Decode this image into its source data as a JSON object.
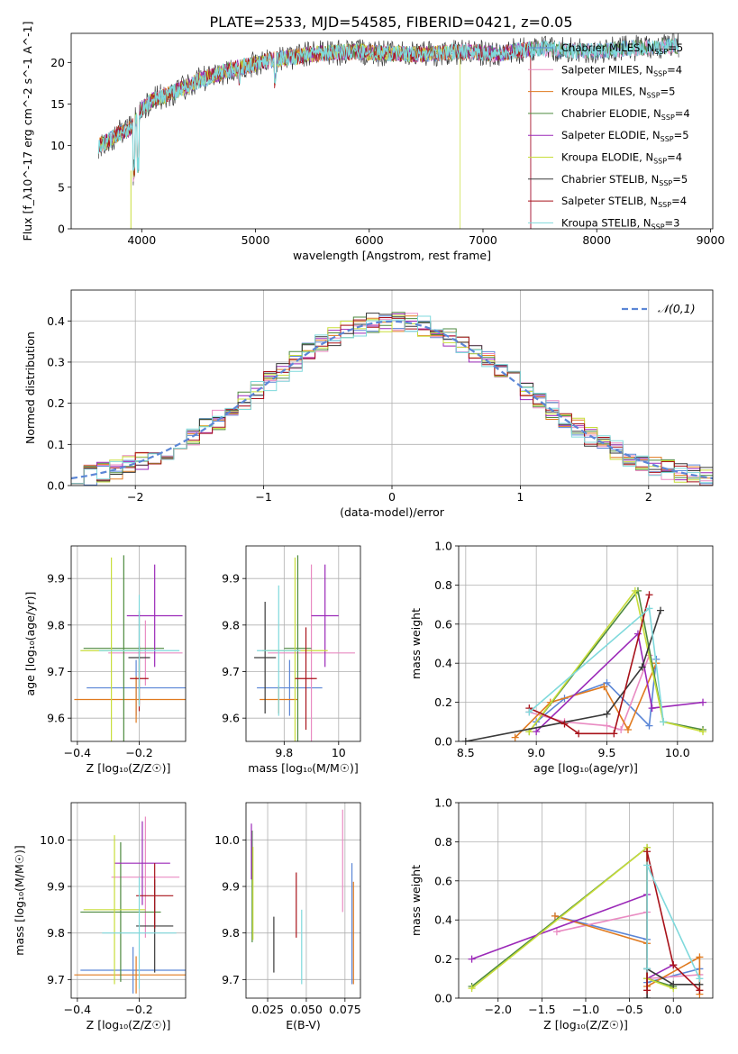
{
  "title": "PLATE=2533, MJD=54585, FIBERID=0421, z=0.05",
  "colors": {
    "chabrier_miles": "#5b86d6",
    "salpeter_miles": "#e98bc2",
    "kroupa_miles": "#e07a1f",
    "chabrier_elodie": "#4e8a3f",
    "salpeter_elodie": "#9b29b8",
    "kroupa_elodie": "#c8dd3a",
    "chabrier_stelib": "#3a3a3a",
    "salpeter_stelib": "#a8121a",
    "kroupa_stelib": "#7fd9dc"
  },
  "chart_data": [
    {
      "id": "spectrum",
      "type": "line",
      "title": "PLATE=2533, MJD=54585, FIBERID=0421, z=0.05",
      "xlabel": "wavelength [Angstrom, rest frame]",
      "ylabel": "Flux [f_λ10^-17 erg cm^-2 s^-1 A^-1]",
      "xlim": [
        3380,
        9020
      ],
      "ylim": [
        0,
        23.5
      ],
      "xticks": [
        4000,
        5000,
        6000,
        7000,
        8000,
        9000
      ],
      "yticks": [
        0,
        5,
        10,
        15,
        20
      ],
      "grid": false,
      "legend_position": "top-right",
      "series": [
        {
          "name": "Chabrier MILES, N_SSP=5",
          "color": "#5b86d6"
        },
        {
          "name": "Salpeter MILES, N_SSP=4",
          "color": "#e98bc2"
        },
        {
          "name": "Kroupa MILES, N_SSP=5",
          "color": "#e07a1f"
        },
        {
          "name": "Chabrier ELODIE, N_SSP=4",
          "color": "#4e8a3f"
        },
        {
          "name": "Salpeter ELODIE, N_SSP=5",
          "color": "#9b29b8"
        },
        {
          "name": "Kroupa ELODIE, N_SSP=4",
          "color": "#c8dd3a"
        },
        {
          "name": "Chabrier STELIB, N_SSP=5",
          "color": "#3a3a3a"
        },
        {
          "name": "Salpeter STELIB, N_SSP=4",
          "color": "#a8121a"
        },
        {
          "name": "Kroupa STELIB, N_SSP=3",
          "color": "#7fd9dc"
        }
      ],
      "continuum": {
        "x": [
          3620,
          3700,
          3800,
          3900,
          4000,
          4100,
          4200,
          4300,
          4500,
          4700,
          4900,
          5100,
          5300,
          5500,
          5700,
          5900,
          6100,
          6300,
          6500,
          6700,
          6900,
          7100,
          7300,
          7500,
          7700,
          7900,
          8100,
          8300,
          8500,
          8700
        ],
        "y": [
          10,
          10.5,
          11.5,
          12,
          14.5,
          15.5,
          16,
          16.5,
          17.8,
          18.8,
          19.5,
          20.2,
          20.6,
          21,
          21.2,
          21.3,
          21.1,
          21,
          21,
          21.2,
          21.3,
          21,
          21.4,
          21.7,
          21.5,
          21.3,
          21.5,
          21.7,
          21.8,
          22
        ]
      }
    },
    {
      "id": "residuals",
      "type": "line",
      "xlabel": "(data-model)/error",
      "ylabel": "Normed distribution",
      "xlim": [
        -2.5,
        2.5
      ],
      "ylim": [
        0,
        0.475
      ],
      "xticks": [
        -2,
        -1,
        0,
        1,
        2
      ],
      "yticks": [
        0.0,
        0.1,
        0.2,
        0.3,
        0.4
      ],
      "grid": true,
      "legend_position": "top-right",
      "legend": [
        "𝒩(0,1)"
      ]
    },
    {
      "id": "age_vs_Z",
      "type": "scatter",
      "xlabel": "Z [log₁₀(Z/Z☉)]",
      "ylabel": "age  [log₁₀(age/yr)]",
      "xlim": [
        -0.42,
        -0.05
      ],
      "ylim": [
        9.55,
        9.97
      ],
      "xticks": [
        -0.4,
        -0.2
      ],
      "yticks": [
        9.6,
        9.7,
        9.8,
        9.9
      ],
      "grid": true,
      "errorbars": [
        {
          "x": -0.21,
          "y": 9.665,
          "xerr": 0.16,
          "yerr": 0.06,
          "color": "#5b86d6"
        },
        {
          "x": -0.21,
          "y": 9.64,
          "xerr": 0.2,
          "yerr": 0.05,
          "color": "#e07a1f"
        },
        {
          "x": -0.18,
          "y": 9.74,
          "xerr": 0.12,
          "yerr": 0.07,
          "color": "#e98bc2"
        },
        {
          "x": -0.25,
          "y": 9.75,
          "xerr": 0.13,
          "yerr": 0.2,
          "color": "#4e8a3f"
        },
        {
          "x": -0.15,
          "y": 9.82,
          "xerr": 0.09,
          "yerr": 0.11,
          "color": "#9b29b8"
        },
        {
          "x": -0.29,
          "y": 9.745,
          "xerr": 0.1,
          "yerr": 0.2,
          "color": "#c8dd3a"
        },
        {
          "x": -0.2,
          "y": 9.73,
          "xerr": 0.035,
          "yerr": 0.1,
          "color": "#3a3a3a"
        },
        {
          "x": -0.2,
          "y": 9.685,
          "xerr": 0.03,
          "yerr": 0.07,
          "color": "#a8121a"
        },
        {
          "x": -0.2,
          "y": 9.745,
          "xerr": 0.13,
          "yerr": 0.12,
          "color": "#7fd9dc"
        }
      ]
    },
    {
      "id": "age_vs_mass",
      "type": "scatter",
      "xlabel": "mass [log₁₀(M/M☉)]",
      "xlim": [
        9.66,
        10.08
      ],
      "ylim": [
        9.55,
        9.97
      ],
      "xticks": [
        9.8,
        10.0
      ],
      "yticks": [
        9.6,
        9.7,
        9.8,
        9.9,
        ""
      ],
      "grid": true,
      "errorbars": [
        {
          "x": 9.82,
          "y": 9.665,
          "xerr": 0.12,
          "yerr": 0.06,
          "color": "#5b86d6"
        },
        {
          "x": 9.9,
          "y": 9.74,
          "xerr": 0.16,
          "yerr": 0.19,
          "color": "#e98bc2"
        },
        {
          "x": 9.78,
          "y": 9.64,
          "xerr": 0.07,
          "yerr": 0.03,
          "color": "#e07a1f"
        },
        {
          "x": 9.85,
          "y": 9.75,
          "xerr": 0.05,
          "yerr": 0.2,
          "color": "#4e8a3f"
        },
        {
          "x": 9.95,
          "y": 9.82,
          "xerr": 0.05,
          "yerr": 0.11,
          "color": "#9b29b8"
        },
        {
          "x": 9.84,
          "y": 9.745,
          "xerr": 0.12,
          "yerr": 0.2,
          "color": "#c8dd3a"
        },
        {
          "x": 9.73,
          "y": 9.73,
          "xerr": 0.04,
          "yerr": 0.12,
          "color": "#3a3a3a"
        },
        {
          "x": 9.88,
          "y": 9.685,
          "xerr": 0.04,
          "yerr": 0.11,
          "color": "#a8121a"
        },
        {
          "x": 9.78,
          "y": 9.745,
          "xerr": 0.08,
          "yerr": 0.14,
          "color": "#7fd9dc"
        }
      ]
    },
    {
      "id": "weight_vs_age",
      "type": "line",
      "xlabel": "age  [log₁₀(age/yr)]",
      "ylabel": "mass weight",
      "xlim": [
        8.45,
        10.25
      ],
      "ylim": [
        0,
        1
      ],
      "xticks": [
        8.5,
        9.0,
        9.5,
        10.0
      ],
      "yticks": [
        0.0,
        0.2,
        0.4,
        0.6,
        0.8,
        1.0
      ],
      "grid": true,
      "series": [
        {
          "color": "#5b86d6",
          "x": [
            9.0,
            9.2,
            9.5,
            9.8,
            9.85
          ],
          "y": [
            0.1,
            0.22,
            0.3,
            0.08,
            0.42
          ]
        },
        {
          "color": "#e98bc2",
          "x": [
            8.95,
            9.2,
            9.5,
            9.6,
            9.8
          ],
          "y": [
            0.15,
            0.1,
            0.08,
            0.06,
            0.44
          ]
        },
        {
          "color": "#e07a1f",
          "x": [
            8.85,
            9.1,
            9.48,
            9.65,
            9.85
          ],
          "y": [
            0.02,
            0.2,
            0.28,
            0.06,
            0.4
          ]
        },
        {
          "color": "#4e8a3f",
          "x": [
            8.95,
            9.72,
            9.9,
            10.18
          ],
          "y": [
            0.05,
            0.77,
            0.1,
            0.06
          ]
        },
        {
          "color": "#9b29b8",
          "x": [
            9.0,
            9.72,
            9.82,
            10.18
          ],
          "y": [
            0.05,
            0.55,
            0.17,
            0.2
          ]
        },
        {
          "color": "#c8dd3a",
          "x": [
            8.95,
            9.7,
            9.9,
            10.18
          ],
          "y": [
            0.05,
            0.77,
            0.1,
            0.05
          ]
        },
        {
          "color": "#3a3a3a",
          "x": [
            8.5,
            9.5,
            9.75,
            9.88
          ],
          "y": [
            0.0,
            0.14,
            0.38,
            0.67
          ]
        },
        {
          "color": "#a8121a",
          "x": [
            8.95,
            9.2,
            9.3,
            9.55,
            9.8
          ],
          "y": [
            0.17,
            0.09,
            0.04,
            0.04,
            0.75
          ]
        },
        {
          "color": "#7fd9dc",
          "x": [
            8.95,
            9.8,
            9.9
          ],
          "y": [
            0.15,
            0.68,
            0.1
          ]
        }
      ]
    },
    {
      "id": "mass_vs_Z",
      "type": "scatter",
      "xlabel": "Z [log₁₀(Z/Z☉)]",
      "ylabel": "mass [log₁₀(M/M☉)]",
      "xlim": [
        -0.42,
        -0.05
      ],
      "ylim": [
        9.66,
        10.08
      ],
      "xticks": [
        -0.4,
        -0.2
      ],
      "yticks": [
        9.7,
        9.8,
        9.9,
        10.0
      ],
      "grid": true,
      "errorbars": [
        {
          "x": -0.22,
          "y": 9.72,
          "xerr": 0.17,
          "yerr": 0.05,
          "color": "#5b86d6"
        },
        {
          "x": -0.18,
          "y": 9.92,
          "xerr": 0.11,
          "yerr": 0.13,
          "color": "#e98bc2"
        },
        {
          "x": -0.21,
          "y": 9.71,
          "xerr": 0.2,
          "yerr": 0.04,
          "color": "#e07a1f"
        },
        {
          "x": -0.26,
          "y": 9.845,
          "xerr": 0.13,
          "yerr": 0.15,
          "color": "#4e8a3f"
        },
        {
          "x": -0.19,
          "y": 9.95,
          "xerr": 0.09,
          "yerr": 0.09,
          "color": "#9b29b8"
        },
        {
          "x": -0.28,
          "y": 9.85,
          "xerr": 0.1,
          "yerr": 0.16,
          "color": "#c8dd3a"
        },
        {
          "x": -0.15,
          "y": 9.815,
          "xerr": 0.06,
          "yerr": 0.1,
          "color": "#3a3a3a"
        },
        {
          "x": -0.15,
          "y": 9.88,
          "xerr": 0.06,
          "yerr": 0.07,
          "color": "#a8121a"
        },
        {
          "x": -0.2,
          "y": 9.8,
          "xerr": 0.12,
          "yerr": 0.12,
          "color": "#7fd9dc"
        }
      ]
    },
    {
      "id": "mass_vs_EBV",
      "type": "scatter",
      "xlabel": "E(B-V)",
      "xlim": [
        0.011,
        0.085
      ],
      "ylim": [
        9.66,
        10.08
      ],
      "xticks": [
        0.025,
        0.05,
        0.075
      ],
      "yticks": [
        9.7,
        9.8,
        9.9,
        10.0
      ],
      "grid": true,
      "errorbars": [
        {
          "x": 0.0795,
          "y": 9.82,
          "xerr": 0,
          "yerr": 0.13,
          "color": "#5b86d6"
        },
        {
          "x": 0.0735,
          "y": 9.955,
          "xerr": 0,
          "yerr": 0.11,
          "color": "#e98bc2"
        },
        {
          "x": 0.0805,
          "y": 9.8,
          "xerr": 0,
          "yerr": 0.11,
          "color": "#e07a1f"
        },
        {
          "x": 0.015,
          "y": 9.9,
          "xerr": 0,
          "yerr": 0.12,
          "color": "#4e8a3f"
        },
        {
          "x": 0.0145,
          "y": 9.975,
          "xerr": 0,
          "yerr": 0.06,
          "color": "#9b29b8"
        },
        {
          "x": 0.0155,
          "y": 9.885,
          "xerr": 0,
          "yerr": 0.1,
          "color": "#c8dd3a"
        },
        {
          "x": 0.029,
          "y": 9.775,
          "xerr": 0,
          "yerr": 0.06,
          "color": "#3a3a3a"
        },
        {
          "x": 0.0435,
          "y": 9.86,
          "xerr": 0,
          "yerr": 0.07,
          "color": "#a8121a"
        },
        {
          "x": 0.047,
          "y": 9.77,
          "xerr": 0,
          "yerr": 0.08,
          "color": "#7fd9dc"
        }
      ]
    },
    {
      "id": "weight_vs_Z",
      "type": "line",
      "xlabel": "Z [log₁₀(Z/Z☉)]",
      "ylabel": "mass weight",
      "xlim": [
        -2.45,
        0.45
      ],
      "ylim": [
        0,
        1
      ],
      "xticks": [
        -2.0,
        -1.5,
        -1.0,
        -0.5,
        0.0
      ],
      "yticks": [
        0.0,
        0.2,
        0.4,
        0.6,
        0.8,
        1.0
      ],
      "grid": true,
      "series": [
        {
          "color": "#5b86d6",
          "x": [
            -1.35,
            -0.3,
            -0.3,
            0.3
          ],
          "y": [
            0.42,
            0.3,
            0.08,
            0.15
          ]
        },
        {
          "color": "#e98bc2",
          "x": [
            -1.33,
            -0.3,
            -0.3,
            0.3
          ],
          "y": [
            0.34,
            0.44,
            0.1,
            0.12
          ]
        },
        {
          "color": "#e07a1f",
          "x": [
            -1.35,
            -0.3,
            -0.3,
            0.3,
            0.3
          ],
          "y": [
            0.42,
            0.28,
            0.06,
            0.21,
            0.02
          ]
        },
        {
          "color": "#4e8a3f",
          "x": [
            -2.3,
            -0.3,
            -0.3,
            0.0
          ],
          "y": [
            0.06,
            0.77,
            0.1,
            0.06
          ]
        },
        {
          "color": "#9b29b8",
          "x": [
            -2.3,
            -0.3,
            -0.3,
            0.0
          ],
          "y": [
            0.2,
            0.53,
            0.1,
            0.17
          ]
        },
        {
          "color": "#c8dd3a",
          "x": [
            -2.3,
            -0.3,
            -0.3,
            0.0
          ],
          "y": [
            0.05,
            0.77,
            0.1,
            0.05
          ]
        },
        {
          "color": "#3a3a3a",
          "x": [
            -0.3,
            -0.3,
            0.0,
            0.3
          ],
          "y": [
            0.0,
            0.15,
            0.07,
            0.07
          ]
        },
        {
          "color": "#a8121a",
          "x": [
            -0.3,
            -0.3,
            0.0,
            0.3
          ],
          "y": [
            0.04,
            0.75,
            0.17,
            0.04
          ]
        },
        {
          "color": "#7fd9dc",
          "x": [
            -0.3,
            -0.3,
            0.3
          ],
          "y": [
            0.15,
            0.68,
            0.1
          ]
        }
      ]
    }
  ]
}
